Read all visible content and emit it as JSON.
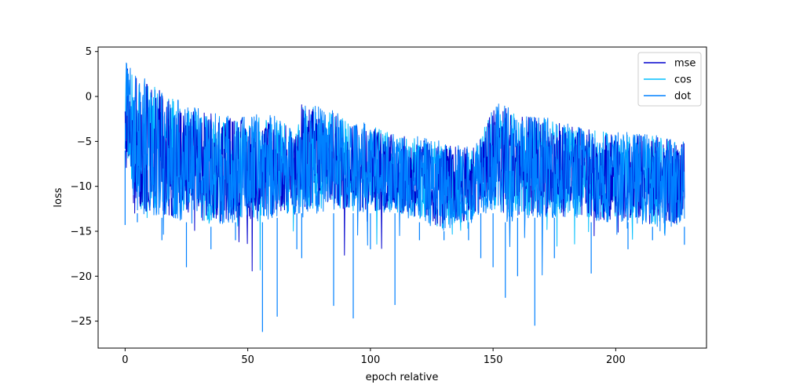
{
  "chart_data": {
    "type": "line",
    "title": "",
    "xlabel": "epoch relative",
    "ylabel": "loss",
    "xlim": [
      -11,
      237
    ],
    "ylim": [
      -28,
      5.5
    ],
    "xticks": [
      0,
      50,
      100,
      150,
      200
    ],
    "yticks": [
      5,
      0,
      -5,
      -10,
      -15,
      -20,
      -25
    ],
    "grid": false,
    "legend": {
      "position": "top-right"
    },
    "series": [
      {
        "name": "mse",
        "color": "#0000cd"
      },
      {
        "name": "cos",
        "color": "#00bfff"
      },
      {
        "name": "dot",
        "color": "#0080ff"
      }
    ],
    "envelope": [
      {
        "x": 0,
        "low": -6,
        "high": 4,
        "dip": -14.3
      },
      {
        "x": 5,
        "low": -13,
        "high": 2.5,
        "dip": -14
      },
      {
        "x": 15,
        "low": -13.5,
        "high": 1,
        "dip": -16
      },
      {
        "x": 25,
        "low": -14,
        "high": -1,
        "dip": -19
      },
      {
        "x": 35,
        "low": -14.5,
        "high": -1.5,
        "dip": -17
      },
      {
        "x": 45,
        "low": -14,
        "high": -2,
        "dip": -16
      },
      {
        "x": 56,
        "low": -14,
        "high": -2,
        "dip": -26.2
      },
      {
        "x": 62,
        "low": -13.5,
        "high": -2,
        "dip": -24.5
      },
      {
        "x": 70,
        "low": -13,
        "high": -4,
        "dip": -17
      },
      {
        "x": 72,
        "low": -13,
        "high": -0.5,
        "dip": -18
      },
      {
        "x": 85,
        "low": -13,
        "high": -1.5,
        "dip": -23.3
      },
      {
        "x": 93,
        "low": -13,
        "high": -2.5,
        "dip": -24.7
      },
      {
        "x": 100,
        "low": -13,
        "high": -3,
        "dip": -17
      },
      {
        "x": 110,
        "low": -13,
        "high": -4,
        "dip": -23.2
      },
      {
        "x": 120,
        "low": -14,
        "high": -4.5,
        "dip": -16
      },
      {
        "x": 130,
        "low": -15,
        "high": -5,
        "dip": -16
      },
      {
        "x": 140,
        "low": -14,
        "high": -5.5,
        "dip": -16
      },
      {
        "x": 145,
        "low": -13,
        "high": -4,
        "dip": -18
      },
      {
        "x": 150,
        "low": -13,
        "high": -1,
        "dip": -19
      },
      {
        "x": 155,
        "low": -14,
        "high": -0.5,
        "dip": -22.4
      },
      {
        "x": 160,
        "low": -13.5,
        "high": -2,
        "dip": -20
      },
      {
        "x": 167,
        "low": -13.5,
        "high": -2,
        "dip": -25.5
      },
      {
        "x": 175,
        "low": -13.5,
        "high": -2.5,
        "dip": -18
      },
      {
        "x": 190,
        "low": -14,
        "high": -3.5,
        "dip": -19.7
      },
      {
        "x": 205,
        "low": -14,
        "high": -4,
        "dip": -17
      },
      {
        "x": 215,
        "low": -14.5,
        "high": -4,
        "dip": -16
      },
      {
        "x": 228,
        "low": -14.5,
        "high": -5,
        "dip": -16.5
      }
    ]
  }
}
